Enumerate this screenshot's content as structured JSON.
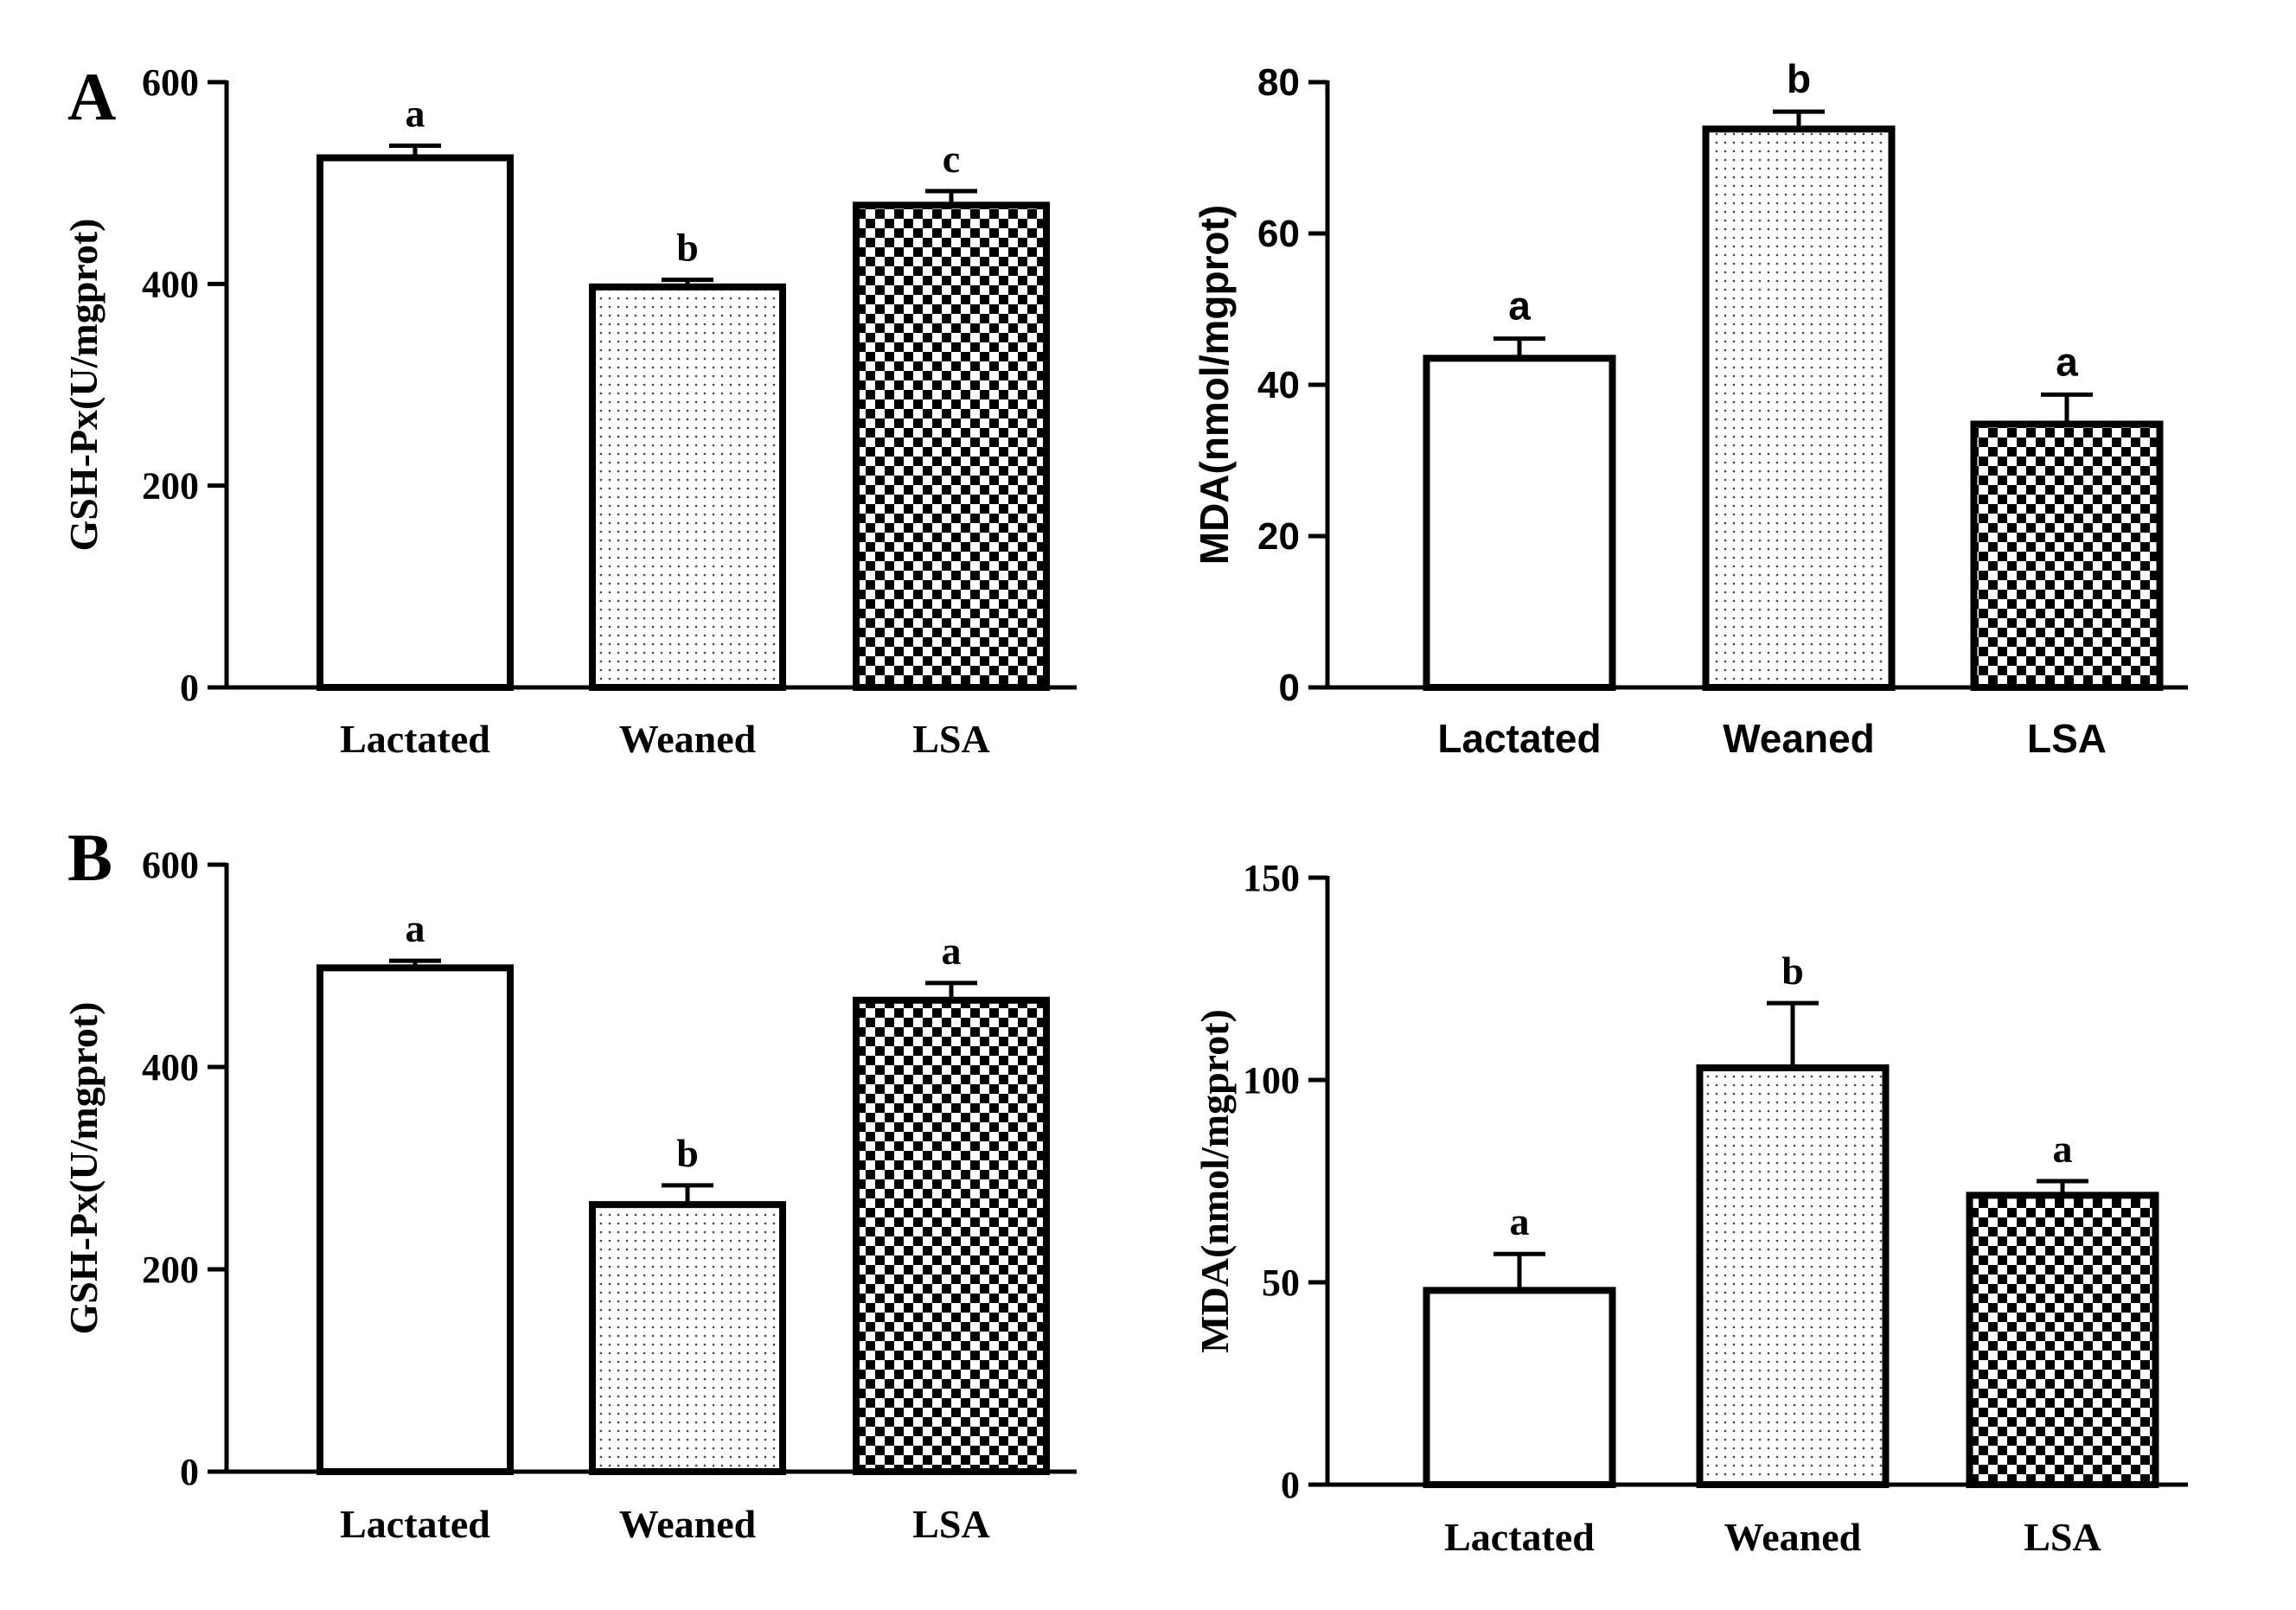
{
  "figure": {
    "panel_labels": [
      "A",
      "B"
    ]
  },
  "colors": {
    "ink": "#000000",
    "background": "#ffffff"
  },
  "chart_data": [
    {
      "id": "A-left",
      "panel": "A",
      "type": "bar",
      "title": "",
      "xlabel": "",
      "ylabel": "GSH-Px(U/mgprot)",
      "categories": [
        "Lactated",
        "Weaned",
        "LSA"
      ],
      "values": [
        525,
        397,
        478
      ],
      "errors": [
        12,
        7,
        14
      ],
      "significance": [
        "a",
        "b",
        "c"
      ],
      "patterns": [
        "white",
        "dots",
        "checker"
      ],
      "ylim": [
        0,
        600
      ],
      "yticks": [
        0,
        200,
        400,
        600
      ],
      "font": "serif"
    },
    {
      "id": "A-right",
      "panel": "A",
      "type": "bar",
      "title": "",
      "xlabel": "",
      "ylabel": "MDA(nmol/mgprot)",
      "categories": [
        "Lactated",
        "Weaned",
        "LSA"
      ],
      "values": [
        43.5,
        73.8,
        34.8
      ],
      "errors": [
        2.6,
        2.3,
        3.9
      ],
      "significance": [
        "a",
        "b",
        "a"
      ],
      "patterns": [
        "white",
        "dots",
        "checker"
      ],
      "ylim": [
        0,
        80
      ],
      "yticks": [
        0,
        20,
        40,
        60,
        80
      ],
      "font": "sans"
    },
    {
      "id": "B-left",
      "panel": "B",
      "type": "bar",
      "title": "",
      "xlabel": "",
      "ylabel": "GSH-Px(U/mgprot)",
      "categories": [
        "Lactated",
        "Weaned",
        "LSA"
      ],
      "values": [
        498,
        264,
        466
      ],
      "errors": [
        7,
        19,
        17
      ],
      "significance": [
        "a",
        "b",
        "a"
      ],
      "patterns": [
        "white",
        "dots",
        "checker"
      ],
      "ylim": [
        0,
        600
      ],
      "yticks": [
        0,
        200,
        400,
        600
      ],
      "font": "serif"
    },
    {
      "id": "B-right",
      "panel": "B",
      "type": "bar",
      "title": "",
      "xlabel": "",
      "ylabel": "MDA(nmol/mgprot)",
      "categories": [
        "Lactated",
        "Weaned",
        "LSA"
      ],
      "values": [
        48,
        103,
        71.5
      ],
      "errors": [
        9,
        16,
        3.5
      ],
      "significance": [
        "a",
        "b",
        "a"
      ],
      "patterns": [
        "white",
        "dots",
        "checker"
      ],
      "ylim": [
        0,
        150
      ],
      "yticks": [
        0,
        50,
        100,
        150
      ],
      "font": "serif"
    }
  ]
}
